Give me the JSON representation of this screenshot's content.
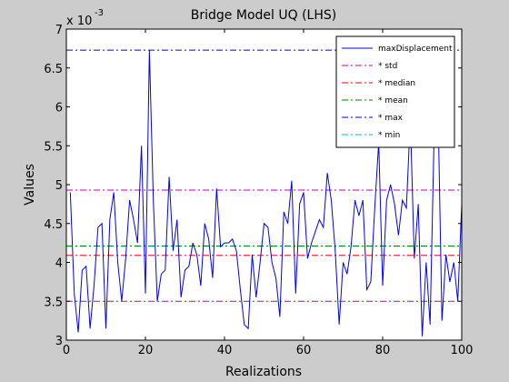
{
  "chart_data": {
    "type": "line",
    "title": "Bridge Model UQ (LHS)",
    "xlabel": "Realizations",
    "ylabel": "Values",
    "y_scale_label": "x 10",
    "y_scale_exponent": "-3",
    "xlim": [
      0,
      100
    ],
    "ylim": [
      3,
      7
    ],
    "x_ticks": [
      "0",
      "20",
      "40",
      "60",
      "80",
      "100"
    ],
    "y_ticks": [
      "3",
      "3.5",
      "4",
      "4.5",
      "5",
      "5.5",
      "6",
      "6.5",
      "7"
    ],
    "grid": false,
    "legend_position": "top-right",
    "series": [
      {
        "name": "maxDisplacement",
        "color": "#0000ff",
        "style": "solid",
        "x": [
          1,
          2,
          3,
          4,
          5,
          6,
          7,
          8,
          9,
          10,
          11,
          12,
          13,
          14,
          15,
          16,
          17,
          18,
          19,
          20,
          21,
          22,
          23,
          24,
          25,
          26,
          27,
          28,
          29,
          30,
          31,
          32,
          33,
          34,
          35,
          36,
          37,
          38,
          39,
          40,
          41,
          42,
          43,
          44,
          45,
          46,
          47,
          48,
          49,
          50,
          51,
          52,
          53,
          54,
          55,
          56,
          57,
          58,
          59,
          60,
          61,
          62,
          63,
          64,
          65,
          66,
          67,
          68,
          69,
          70,
          71,
          72,
          73,
          74,
          75,
          76,
          77,
          78,
          79,
          80,
          81,
          82,
          83,
          84,
          85,
          86,
          87,
          88,
          89,
          90,
          91,
          92,
          93,
          94,
          95,
          96,
          97,
          98,
          99,
          100
        ],
        "values": [
          4.9,
          3.6,
          3.1,
          3.9,
          3.95,
          3.15,
          3.7,
          4.45,
          4.5,
          3.15,
          4.55,
          4.9,
          4.0,
          3.5,
          4.05,
          4.8,
          4.55,
          4.25,
          5.5,
          3.6,
          6.73,
          4.8,
          3.5,
          3.85,
          3.9,
          5.1,
          4.15,
          4.55,
          3.55,
          3.9,
          3.95,
          4.25,
          4.1,
          3.7,
          4.5,
          4.3,
          3.8,
          4.95,
          4.2,
          4.25,
          4.25,
          4.3,
          4.15,
          3.65,
          3.2,
          3.15,
          4.1,
          3.55,
          4.0,
          4.5,
          4.45,
          4.0,
          3.8,
          3.3,
          4.65,
          4.5,
          5.05,
          3.6,
          4.75,
          4.9,
          4.05,
          4.25,
          4.4,
          4.55,
          4.45,
          5.15,
          4.8,
          4.15,
          3.2,
          4.0,
          3.85,
          4.2,
          4.8,
          4.6,
          4.8,
          3.65,
          3.75,
          4.7,
          5.55,
          3.7,
          4.8,
          5.0,
          4.75,
          4.35,
          4.8,
          4.7,
          5.85,
          4.05,
          4.75,
          3.05,
          4.0,
          3.2,
          5.6,
          6.0,
          3.25,
          4.1,
          3.75,
          4.0,
          3.5,
          4.75
        ]
      },
      {
        "name": "* std",
        "color": "#bf00bf",
        "style": "dashdot",
        "hlines": [
          4.93,
          3.5
        ]
      },
      {
        "name": "* median",
        "color": "#ff0000",
        "style": "dashdot",
        "hlines": [
          4.09
        ]
      },
      {
        "name": "* mean",
        "color": "#008000",
        "style": "dashdot",
        "hlines": [
          4.21
        ]
      },
      {
        "name": "* max",
        "color": "#0000ff",
        "style": "dashdot",
        "hlines": [
          6.73
        ]
      },
      {
        "name": "* min",
        "color": "#00bfbf",
        "style": "dashdot",
        "hlines": [
          3.0
        ]
      }
    ]
  }
}
